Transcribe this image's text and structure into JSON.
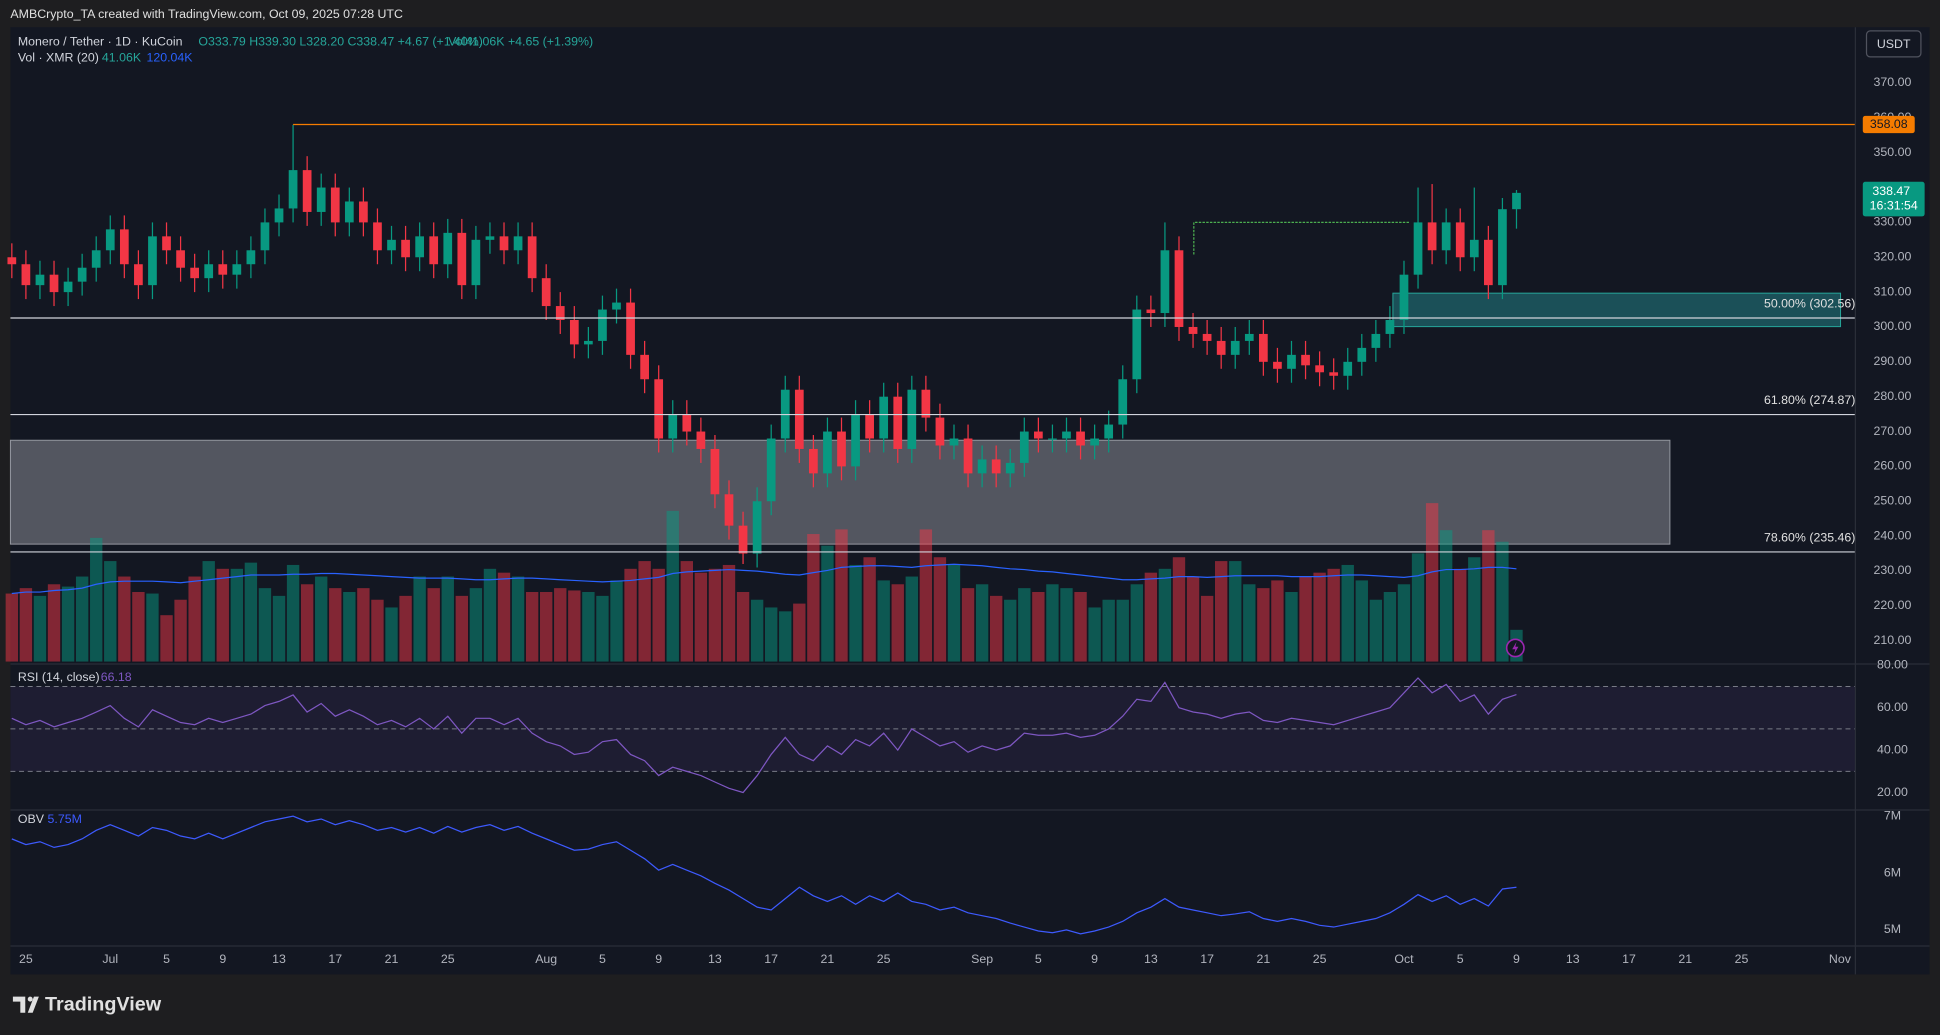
{
  "header": "AMBCrypto_TA created with TradingView.com, Oct 09, 2025 07:28 UTC",
  "brand": "TradingView",
  "currency_button": "USDT",
  "chart_data": [
    {
      "type": "candlestick",
      "title": "Monero / Tether · 1D · KuCoin",
      "legend_text": "O333.79 H339.30 L328.20 C338.47 +4.67 (+1.40%)",
      "volume_text": "Vol41.06K +4.65 (+1.39%)",
      "open": [
        320,
        318,
        312,
        315,
        310,
        313,
        317,
        322,
        328,
        318,
        312,
        326,
        322,
        317,
        314,
        318,
        315,
        318,
        322,
        330,
        334,
        345,
        333,
        340,
        330,
        336,
        330,
        322,
        325,
        320,
        326,
        318,
        327,
        312,
        325,
        326,
        322,
        326,
        314,
        306,
        302,
        295,
        296,
        305,
        307,
        292,
        285,
        268,
        275,
        270,
        265,
        252,
        243,
        235,
        250,
        268,
        282,
        265,
        258,
        270,
        260,
        275,
        268,
        280,
        265,
        282,
        274,
        266,
        268,
        258,
        262,
        258,
        261,
        270,
        268,
        268,
        270,
        266,
        268,
        272,
        285,
        305,
        304,
        322,
        300,
        298,
        296,
        292,
        296,
        298,
        290,
        288,
        292,
        289,
        287,
        286,
        290,
        294,
        298,
        302,
        315,
        330,
        322,
        330,
        320,
        325,
        312,
        333.79
      ],
      "high": [
        324,
        322,
        319,
        319,
        317,
        321,
        326,
        332,
        332,
        322,
        330,
        330,
        326,
        321,
        322,
        322,
        322,
        326,
        334,
        338,
        358,
        349,
        344,
        344,
        340,
        340,
        334,
        329,
        329,
        330,
        330,
        331,
        331,
        329,
        330,
        330,
        330,
        330,
        318,
        310,
        306,
        300,
        309,
        311,
        311,
        296,
        289,
        279,
        279,
        274,
        269,
        256,
        247,
        254,
        272,
        286,
        286,
        269,
        274,
        274,
        279,
        279,
        284,
        284,
        286,
        286,
        278,
        272,
        272,
        266,
        266,
        265,
        274,
        274,
        272,
        274,
        274,
        272,
        276,
        289,
        309,
        309,
        330,
        326,
        304,
        302,
        300,
        300,
        302,
        302,
        294,
        296,
        296,
        293,
        291,
        294,
        298,
        302,
        306,
        319,
        340,
        341,
        334,
        334,
        340,
        329,
        337,
        339.3
      ],
      "low": [
        314,
        308,
        308,
        306,
        306,
        309,
        313,
        318,
        314,
        308,
        308,
        318,
        313,
        310,
        310,
        311,
        311,
        314,
        318,
        326,
        330,
        329,
        329,
        326,
        326,
        326,
        318,
        318,
        316,
        316,
        314,
        314,
        308,
        308,
        321,
        318,
        318,
        310,
        302,
        298,
        291,
        291,
        292,
        301,
        288,
        281,
        264,
        264,
        266,
        261,
        248,
        239,
        232,
        231,
        246,
        264,
        261,
        254,
        254,
        256,
        256,
        264,
        264,
        261,
        261,
        270,
        262,
        262,
        254,
        254,
        254,
        254,
        257,
        264,
        264,
        264,
        262,
        262,
        264,
        268,
        281,
        300,
        300,
        296,
        294,
        292,
        288,
        288,
        292,
        286,
        284,
        284,
        285,
        283,
        282,
        282,
        286,
        290,
        294,
        298,
        311,
        318,
        318,
        316,
        316,
        308,
        308,
        328.2
      ],
      "close": [
        318,
        312,
        315,
        310,
        313,
        317,
        322,
        328,
        318,
        312,
        326,
        322,
        317,
        314,
        318,
        315,
        318,
        322,
        330,
        334,
        345,
        333,
        340,
        330,
        336,
        330,
        322,
        325,
        320,
        326,
        318,
        327,
        312,
        325,
        326,
        322,
        326,
        314,
        306,
        302,
        295,
        296,
        305,
        307,
        292,
        285,
        268,
        275,
        270,
        265,
        252,
        243,
        235,
        250,
        268,
        282,
        265,
        258,
        270,
        260,
        275,
        268,
        280,
        265,
        282,
        274,
        266,
        268,
        258,
        262,
        258,
        261,
        270,
        268,
        268,
        270,
        266,
        268,
        272,
        285,
        305,
        304,
        322,
        300,
        298,
        296,
        292,
        296,
        298,
        290,
        288,
        292,
        289,
        287,
        286,
        290,
        294,
        298,
        302,
        315,
        330,
        322,
        330,
        320,
        325,
        312,
        333.79,
        338.47
      ],
      "up_color": "#089981",
      "down_color": "#f23645",
      "ylim": [
        203.3,
        386
      ],
      "yticks": [
        {
          "value": 210,
          "label": "210.00"
        },
        {
          "value": 220,
          "label": "220.00"
        },
        {
          "value": 230,
          "label": "230.00"
        },
        {
          "value": 240,
          "label": "240.00"
        },
        {
          "value": 250,
          "label": "250.00"
        },
        {
          "value": 260,
          "label": "260.00"
        },
        {
          "value": 270,
          "label": "270.00"
        },
        {
          "value": 280,
          "label": "280.00"
        },
        {
          "value": 290,
          "label": "290.00"
        },
        {
          "value": 300,
          "label": "300.00"
        },
        {
          "value": 310,
          "label": "310.00"
        },
        {
          "value": 320,
          "label": "320.00"
        },
        {
          "value": 330,
          "label": "330.00"
        },
        {
          "value": 340,
          "label": "340.00"
        },
        {
          "value": 350,
          "label": "350.00"
        },
        {
          "value": 360,
          "label": "360.00"
        },
        {
          "value": 370,
          "label": "370.00"
        }
      ],
      "xlim": [
        -0.1,
        131.1
      ],
      "xticks": [
        {
          "value": 1,
          "label": "25"
        },
        {
          "value": 7,
          "label": "Jul"
        },
        {
          "value": 11,
          "label": "5"
        },
        {
          "value": 15,
          "label": "9"
        },
        {
          "value": 19,
          "label": "13"
        },
        {
          "value": 23,
          "label": "17"
        },
        {
          "value": 27,
          "label": "21"
        },
        {
          "value": 31,
          "label": "25"
        },
        {
          "value": 38,
          "label": "Aug"
        },
        {
          "value": 42,
          "label": "5"
        },
        {
          "value": 46,
          "label": "9"
        },
        {
          "value": 50,
          "label": "13"
        },
        {
          "value": 54,
          "label": "17"
        },
        {
          "value": 58,
          "label": "21"
        },
        {
          "value": 62,
          "label": "25"
        },
        {
          "value": 69,
          "label": "Sep"
        },
        {
          "value": 73,
          "label": "5"
        },
        {
          "value": 77,
          "label": "9"
        },
        {
          "value": 81,
          "label": "13"
        },
        {
          "value": 85,
          "label": "17"
        },
        {
          "value": 89,
          "label": "21"
        },
        {
          "value": 93,
          "label": "25"
        },
        {
          "value": 99,
          "label": "Oct"
        },
        {
          "value": 103,
          "label": "5"
        },
        {
          "value": 107,
          "label": "9"
        },
        {
          "value": 111,
          "label": "13"
        },
        {
          "value": 115,
          "label": "17"
        },
        {
          "value": 119,
          "label": "21"
        },
        {
          "value": 123,
          "label": "25"
        },
        {
          "value": 130,
          "label": "Nov"
        }
      ],
      "countdown": "16:31:54",
      "levels": [
        {
          "value": 358.08,
          "color": "#f57c00"
        },
        {
          "value": 302.56,
          "label": "50.00% (302.56)",
          "color": "#d1d4dc"
        },
        {
          "value": 274.87,
          "label": "61.80% (274.87)",
          "color": "#d1d4dc"
        },
        {
          "value": 235.46,
          "label": "78.60% (235.46)",
          "color": "#d1d4dc"
        }
      ],
      "zones": [
        {
          "low": 237.7,
          "high": 267.5,
          "color": "#6a6c75"
        },
        {
          "low": 300.1,
          "high": 309.7,
          "color": "#1d5a62"
        }
      ],
      "trendline": {
        "value": 330,
        "color": "#4caf50"
      }
    },
    {
      "type": "bar",
      "title": "Vol · XMR (20)",
      "value_label": "41.06K",
      "ma_label": "120.04K",
      "ma_color": "#2962ff",
      "ylim": [
        0,
        820800
      ],
      "values": [
        88000,
        95000,
        85000,
        100000,
        97000,
        110000,
        160000,
        130000,
        110000,
        90000,
        88000,
        60000,
        80000,
        110000,
        130000,
        120000,
        120000,
        128000,
        95000,
        85000,
        125000,
        100000,
        110000,
        95000,
        90000,
        95000,
        80000,
        70000,
        85000,
        110000,
        95000,
        110000,
        85000,
        95000,
        120000,
        115000,
        110000,
        90000,
        90000,
        95000,
        92000,
        90000,
        85000,
        105000,
        120000,
        130000,
        120000,
        195000,
        130000,
        115000,
        120000,
        125000,
        90000,
        80000,
        70000,
        65000,
        75000,
        165000,
        150000,
        171000,
        125000,
        135000,
        105000,
        100000,
        110000,
        171000,
        135000,
        125000,
        95000,
        100000,
        85000,
        80000,
        95000,
        90000,
        100000,
        95000,
        90000,
        70000,
        80000,
        80000,
        100000,
        115000,
        120000,
        135000,
        110000,
        85000,
        130000,
        130000,
        100000,
        95000,
        105000,
        90000,
        110000,
        115000,
        120000,
        125000,
        105000,
        80000,
        90000,
        100000,
        140000,
        205000,
        170000,
        120000,
        135000,
        170000,
        155000,
        41060
      ],
      "ma_values": [
        88000,
        90000,
        90000,
        92000,
        93000,
        95000,
        100000,
        103000,
        104000,
        104000,
        104000,
        103000,
        102000,
        104000,
        106000,
        108000,
        110000,
        112000,
        112000,
        112000,
        113000,
        113000,
        114000,
        114000,
        113000,
        112000,
        111000,
        110000,
        109000,
        108000,
        108000,
        108000,
        107000,
        106000,
        106000,
        107000,
        108000,
        108000,
        107000,
        106000,
        105000,
        104000,
        103000,
        104000,
        105000,
        107000,
        109000,
        114000,
        116000,
        117000,
        118000,
        119000,
        118000,
        117000,
        115000,
        113000,
        112000,
        115000,
        118000,
        122000,
        123000,
        124000,
        124000,
        123000,
        122000,
        124000,
        125000,
        126000,
        125000,
        124000,
        122000,
        120000,
        119000,
        117000,
        116000,
        114000,
        112000,
        110000,
        108000,
        106000,
        106000,
        107000,
        108000,
        110000,
        110000,
        109000,
        110000,
        111000,
        111000,
        111000,
        111000,
        110000,
        110000,
        110000,
        111000,
        112000,
        112000,
        111000,
        110000,
        109000,
        111000,
        116000,
        119000,
        119000,
        120000,
        122000,
        122000,
        120040
      ]
    },
    {
      "type": "line",
      "title": "RSI (14, close)",
      "color": "#7e57c2",
      "values": [
        55,
        52,
        54,
        51,
        53,
        55,
        58,
        61,
        55,
        51,
        59,
        56,
        53,
        52,
        55,
        53,
        55,
        57,
        61,
        63,
        66,
        58,
        62,
        56,
        59,
        56,
        52,
        54,
        51,
        55,
        50,
        56,
        48,
        55,
        55,
        52,
        55,
        48,
        44,
        42,
        38,
        39,
        44,
        45,
        38,
        35,
        28,
        32,
        30,
        28,
        25,
        22,
        20,
        28,
        38,
        46,
        38,
        35,
        42,
        38,
        45,
        42,
        48,
        40,
        50,
        46,
        42,
        44,
        39,
        42,
        40,
        42,
        48,
        47,
        47,
        48,
        46,
        47,
        50,
        56,
        64,
        63,
        72,
        60,
        58,
        57,
        55,
        57,
        58,
        54,
        53,
        55,
        54,
        53,
        52,
        54,
        56,
        58,
        60,
        67,
        74,
        67,
        71,
        63,
        66,
        57,
        64,
        66.18
      ],
      "ylim": [
        11.8,
        80.6
      ],
      "yticks": [
        {
          "value": 20,
          "label": "20.00"
        },
        {
          "value": 40,
          "label": "40.00"
        },
        {
          "value": 60,
          "label": "60.00"
        },
        {
          "value": 80,
          "label": "80.00"
        }
      ],
      "levels": [
        70,
        50,
        30
      ]
    },
    {
      "type": "line",
      "title": "OBV",
      "last_label": "5.75M",
      "color": "#3d5afe",
      "values": [
        6600000.0,
        6500000.0,
        6550000.0,
        6450000.0,
        6500000.0,
        6600000.0,
        6750000.0,
        6850000.0,
        6750000.0,
        6650000.0,
        6800000.0,
        6750000.0,
        6650000.0,
        6600000.0,
        6700000.0,
        6600000.0,
        6700000.0,
        6800000.0,
        6900000.0,
        6950000.0,
        7000000.0,
        6900000.0,
        6950000.0,
        6850000.0,
        6920000.0,
        6850000.0,
        6750000.0,
        6800000.0,
        6720000.0,
        6800000.0,
        6700000.0,
        6820000.0,
        6720000.0,
        6800000.0,
        6850000.0,
        6750000.0,
        6820000.0,
        6700000.0,
        6600000.0,
        6500000.0,
        6400000.0,
        6420000.0,
        6500000.0,
        6550000.0,
        6400000.0,
        6250000.0,
        6050000.0,
        6150000.0,
        6050000.0,
        5950000.0,
        5820000.0,
        5700000.0,
        5550000.0,
        5400000.0,
        5350000.0,
        5550000.0,
        5750000.0,
        5600000.0,
        5500000.0,
        5600000.0,
        5450000.0,
        5600000.0,
        5500000.0,
        5650000.0,
        5500000.0,
        5450000.0,
        5350000.0,
        5400000.0,
        5300000.0,
        5250000.0,
        5200000.0,
        5120000.0,
        5050000.0,
        4980000.0,
        4950000.0,
        5000000.0,
        4930000.0,
        4980000.0,
        5050000.0,
        5150000.0,
        5300000.0,
        5400000.0,
        5550000.0,
        5400000.0,
        5350000.0,
        5300000.0,
        5250000.0,
        5280000.0,
        5320000.0,
        5200000.0,
        5150000.0,
        5200000.0,
        5150000.0,
        5080000.0,
        5050000.0,
        5100000.0,
        5150000.0,
        5200000.0,
        5300000.0,
        5450000.0,
        5620000.0,
        5500000.0,
        5600000.0,
        5450000.0,
        5550000.0,
        5420000.0,
        5720000.0,
        5750000.0
      ],
      "ylim": [
        4717000.0,
        7109000.0
      ],
      "yticks": [
        {
          "value": 5000000.0,
          "label": "5M"
        },
        {
          "value": 6000000.0,
          "label": "6M"
        },
        {
          "value": 7000000.0,
          "label": "7M"
        }
      ]
    }
  ]
}
